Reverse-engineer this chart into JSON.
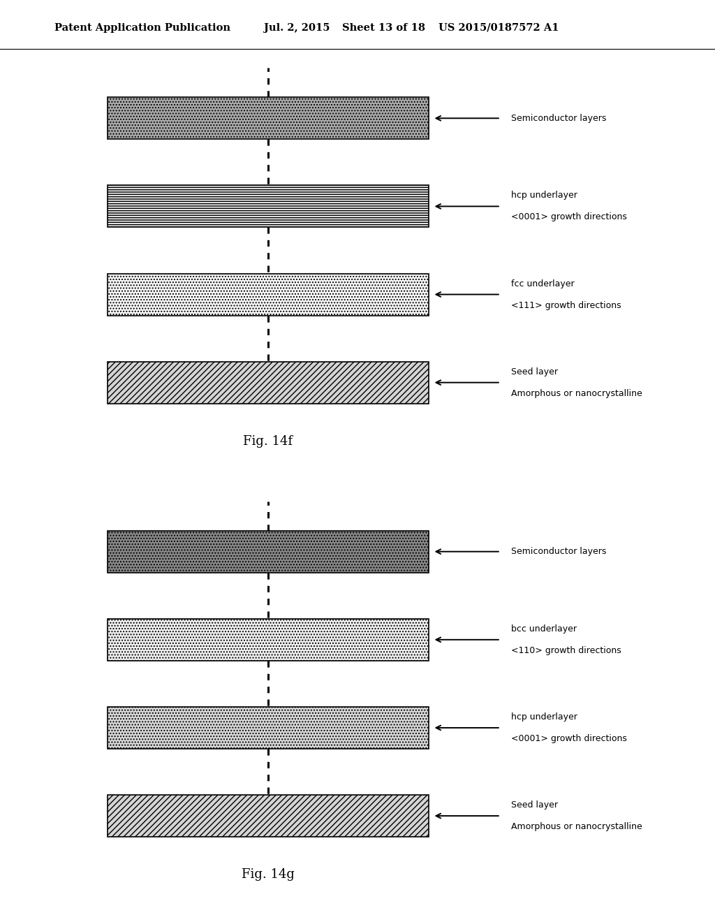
{
  "bg_color": "#ffffff",
  "header_text": "Patent Application Publication",
  "header_date": "Jul. 2, 2015",
  "header_sheet": "Sheet 13 of 18",
  "header_patent": "US 2015/0187572 A1",
  "fig14f": {
    "title": "Fig. 14f",
    "layers": [
      {
        "label_line1": "Semiconductor layers",
        "label_line2": "",
        "hatch": "....",
        "facecolor": "#aaaaaa",
        "edgecolor": "#000000"
      },
      {
        "label_line1": "hcp underlayer",
        "label_line2": "<0001> growth directions",
        "hatch": "-----",
        "facecolor": "#e8e8e8",
        "edgecolor": "#000000"
      },
      {
        "label_line1": "fcc underlayer",
        "label_line2": "<111> growth directions",
        "hatch": "....",
        "facecolor": "#f8f8f8",
        "edgecolor": "#000000"
      },
      {
        "label_line1": "Seed layer",
        "label_line2": "Amorphous or nanocrystalline",
        "hatch": "////",
        "facecolor": "#d4d4d4",
        "edgecolor": "#000000"
      }
    ]
  },
  "fig14g": {
    "title": "Fig. 14g",
    "layers": [
      {
        "label_line1": "Semiconductor layers",
        "label_line2": "",
        "hatch": "....",
        "facecolor": "#888888",
        "edgecolor": "#000000"
      },
      {
        "label_line1": "bcc underlayer",
        "label_line2": "<110> growth directions",
        "hatch": "....",
        "facecolor": "#f0f0f0",
        "edgecolor": "#000000"
      },
      {
        "label_line1": "hcp underlayer",
        "label_line2": "<0001> growth directions",
        "hatch": "....",
        "facecolor": "#d8d8d8",
        "edgecolor": "#000000"
      },
      {
        "label_line1": "Seed layer",
        "label_line2": "Amorphous or nanocrystalline",
        "hatch": "////",
        "facecolor": "#d4d4d4",
        "edgecolor": "#000000"
      }
    ]
  }
}
